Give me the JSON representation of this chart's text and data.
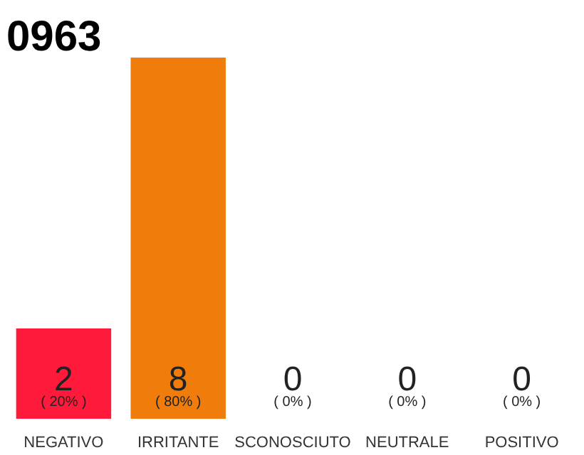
{
  "chart_data": {
    "type": "bar",
    "title": "0963",
    "categories": [
      "NEGATIVO",
      "IRRITANTE",
      "SCONOSCIUTO",
      "NEUTRALE",
      "POSITIVO"
    ],
    "values": [
      2,
      8,
      0,
      0,
      0
    ],
    "colors": [
      "#ff1a3c",
      "#f07c0c",
      "#f07c0c",
      "#f07c0c",
      "#f07c0c"
    ],
    "value_labels": [
      "2",
      "8",
      "0",
      "0",
      "0"
    ],
    "annotations": [
      {
        "text": "( 20% )",
        "x": "NEGATIVO",
        "y": 0
      },
      {
        "text": "( 80% )",
        "x": "IRRITANTE",
        "y": 0
      },
      {
        "text": "( 0% )",
        "x": "SCONOSCIUTO",
        "y": 0
      },
      {
        "text": "( 0% )",
        "x": "NEUTRALE",
        "y": 0
      },
      {
        "text": "( 0% )",
        "x": "POSITIVO",
        "y": 0
      }
    ]
  }
}
